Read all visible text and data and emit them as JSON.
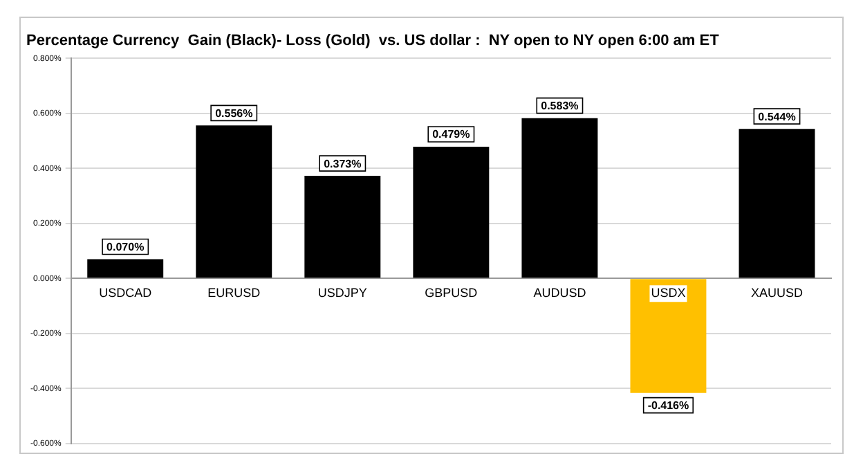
{
  "chart_data": {
    "type": "bar",
    "title": "Percentage Currency  Gain (Black)- Loss (Gold)  vs. US dollar :  NY open to NY open 6:00 am ET",
    "categories": [
      "USDCAD",
      "EURUSD",
      "USDJPY",
      "GBPUSD",
      "AUDUSD",
      "USDX",
      "XAUUSD"
    ],
    "values": [
      0.07,
      0.556,
      0.373,
      0.479,
      0.583,
      -0.416,
      0.544
    ],
    "colors": [
      "#000000",
      "#000000",
      "#000000",
      "#000000",
      "#000000",
      "#ffc000",
      "#000000"
    ],
    "value_labels": [
      "0.070%",
      "0.556%",
      "0.373%",
      "0.479%",
      "0.583%",
      "-0.416%",
      "0.544%"
    ],
    "ylim": [
      -0.6,
      0.8
    ],
    "yticks": [
      {
        "value": -0.6,
        "label": "-0.600%"
      },
      {
        "value": -0.4,
        "label": "-0.400%"
      },
      {
        "value": -0.2,
        "label": "-0.200%"
      },
      {
        "value": 0,
        "label": "0.000%"
      },
      {
        "value": 0.2,
        "label": "0.200%"
      },
      {
        "value": 0.4,
        "label": "0.400%"
      },
      {
        "value": 0.6,
        "label": "0.600%"
      },
      {
        "value": 0.8,
        "label": "0.800%"
      }
    ],
    "grid": "y",
    "legend": false
  }
}
